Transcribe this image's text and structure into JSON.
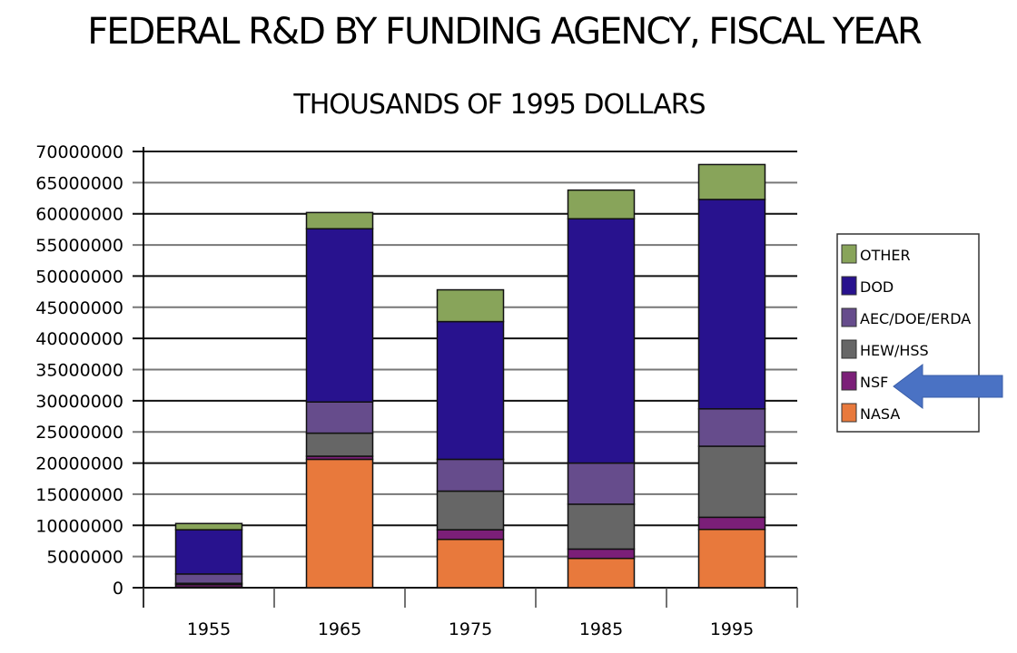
{
  "chart_data": {
    "type": "bar",
    "stacked": true,
    "title": "FEDERAL R&D BY FUNDING AGENCY, FISCAL YEAR",
    "subtitle": "THOUSANDS OF 1995 DOLLARS",
    "xlabel": "",
    "ylabel": "",
    "categories": [
      "1955",
      "1965",
      "1975",
      "1985",
      "1995"
    ],
    "ylim": [
      0,
      70000000
    ],
    "yticks": [
      "0",
      "5000000",
      "10000000",
      "15000000",
      "20000000",
      "25000000",
      "30000000",
      "35000000",
      "40000000",
      "45000000",
      "50000000",
      "55000000",
      "60000000",
      "65000000",
      "70000000"
    ],
    "grid": true,
    "legend_position": "right",
    "series": [
      {
        "name": "NASA",
        "color": "#e8793c",
        "values": [
          100000,
          20600000,
          7750000,
          4700000,
          9350000
        ]
      },
      {
        "name": "NSF",
        "color": "#7b1f78",
        "values": [
          400000,
          500000,
          1550000,
          1500000,
          1950000
        ]
      },
      {
        "name": "HEW/HSS",
        "color": "#666666",
        "values": [
          200000,
          3700000,
          6200000,
          7200000,
          11400000
        ]
      },
      {
        "name": "AEC/DOE/ERDA",
        "color": "#664c8c",
        "values": [
          1500000,
          5000000,
          5100000,
          6600000,
          6000000
        ]
      },
      {
        "name": "DOD",
        "color": "#28128e",
        "values": [
          7100000,
          27800000,
          22100000,
          39200000,
          33600000
        ]
      },
      {
        "name": "OTHER",
        "color": "#88a45a",
        "values": [
          1000000,
          2600000,
          5100000,
          4600000,
          5600000
        ]
      }
    ],
    "annotation": {
      "type": "arrow",
      "points_to": "NSF",
      "color": "#4a72c4"
    }
  }
}
